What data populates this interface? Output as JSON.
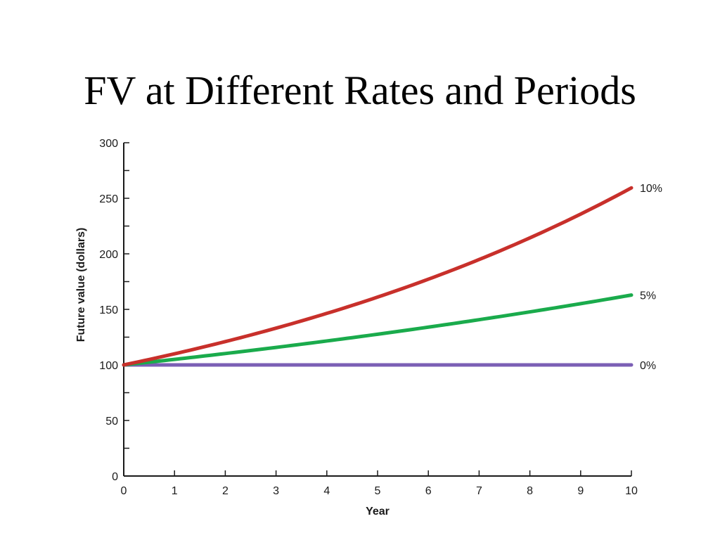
{
  "slide": {
    "title": "FV at Different Rates and Periods"
  },
  "chart_data": {
    "type": "line",
    "title": "",
    "xlabel": "Year",
    "ylabel": "Future value (dollars)",
    "x": [
      0,
      1,
      2,
      3,
      4,
      5,
      6,
      7,
      8,
      9,
      10
    ],
    "xlim": [
      0,
      10
    ],
    "ylim": [
      0,
      300
    ],
    "xticks": [
      0,
      1,
      2,
      3,
      4,
      5,
      6,
      7,
      8,
      9,
      10
    ],
    "yticks": [
      0,
      50,
      100,
      150,
      200,
      250,
      300
    ],
    "grid": false,
    "legend": "end-of-line labels",
    "series": [
      {
        "name": "10%",
        "color": "#c8302b",
        "values": [
          100,
          110,
          121,
          133.1,
          146.41,
          161.05,
          177.16,
          194.87,
          214.36,
          235.79,
          259.37
        ]
      },
      {
        "name": "5%",
        "color": "#1aab4c",
        "values": [
          100,
          105,
          110.25,
          115.76,
          121.55,
          127.63,
          134.01,
          140.71,
          147.75,
          155.13,
          162.89
        ]
      },
      {
        "name": "0%",
        "color": "#7b5fb5",
        "values": [
          100,
          100,
          100,
          100,
          100,
          100,
          100,
          100,
          100,
          100,
          100
        ]
      }
    ]
  }
}
